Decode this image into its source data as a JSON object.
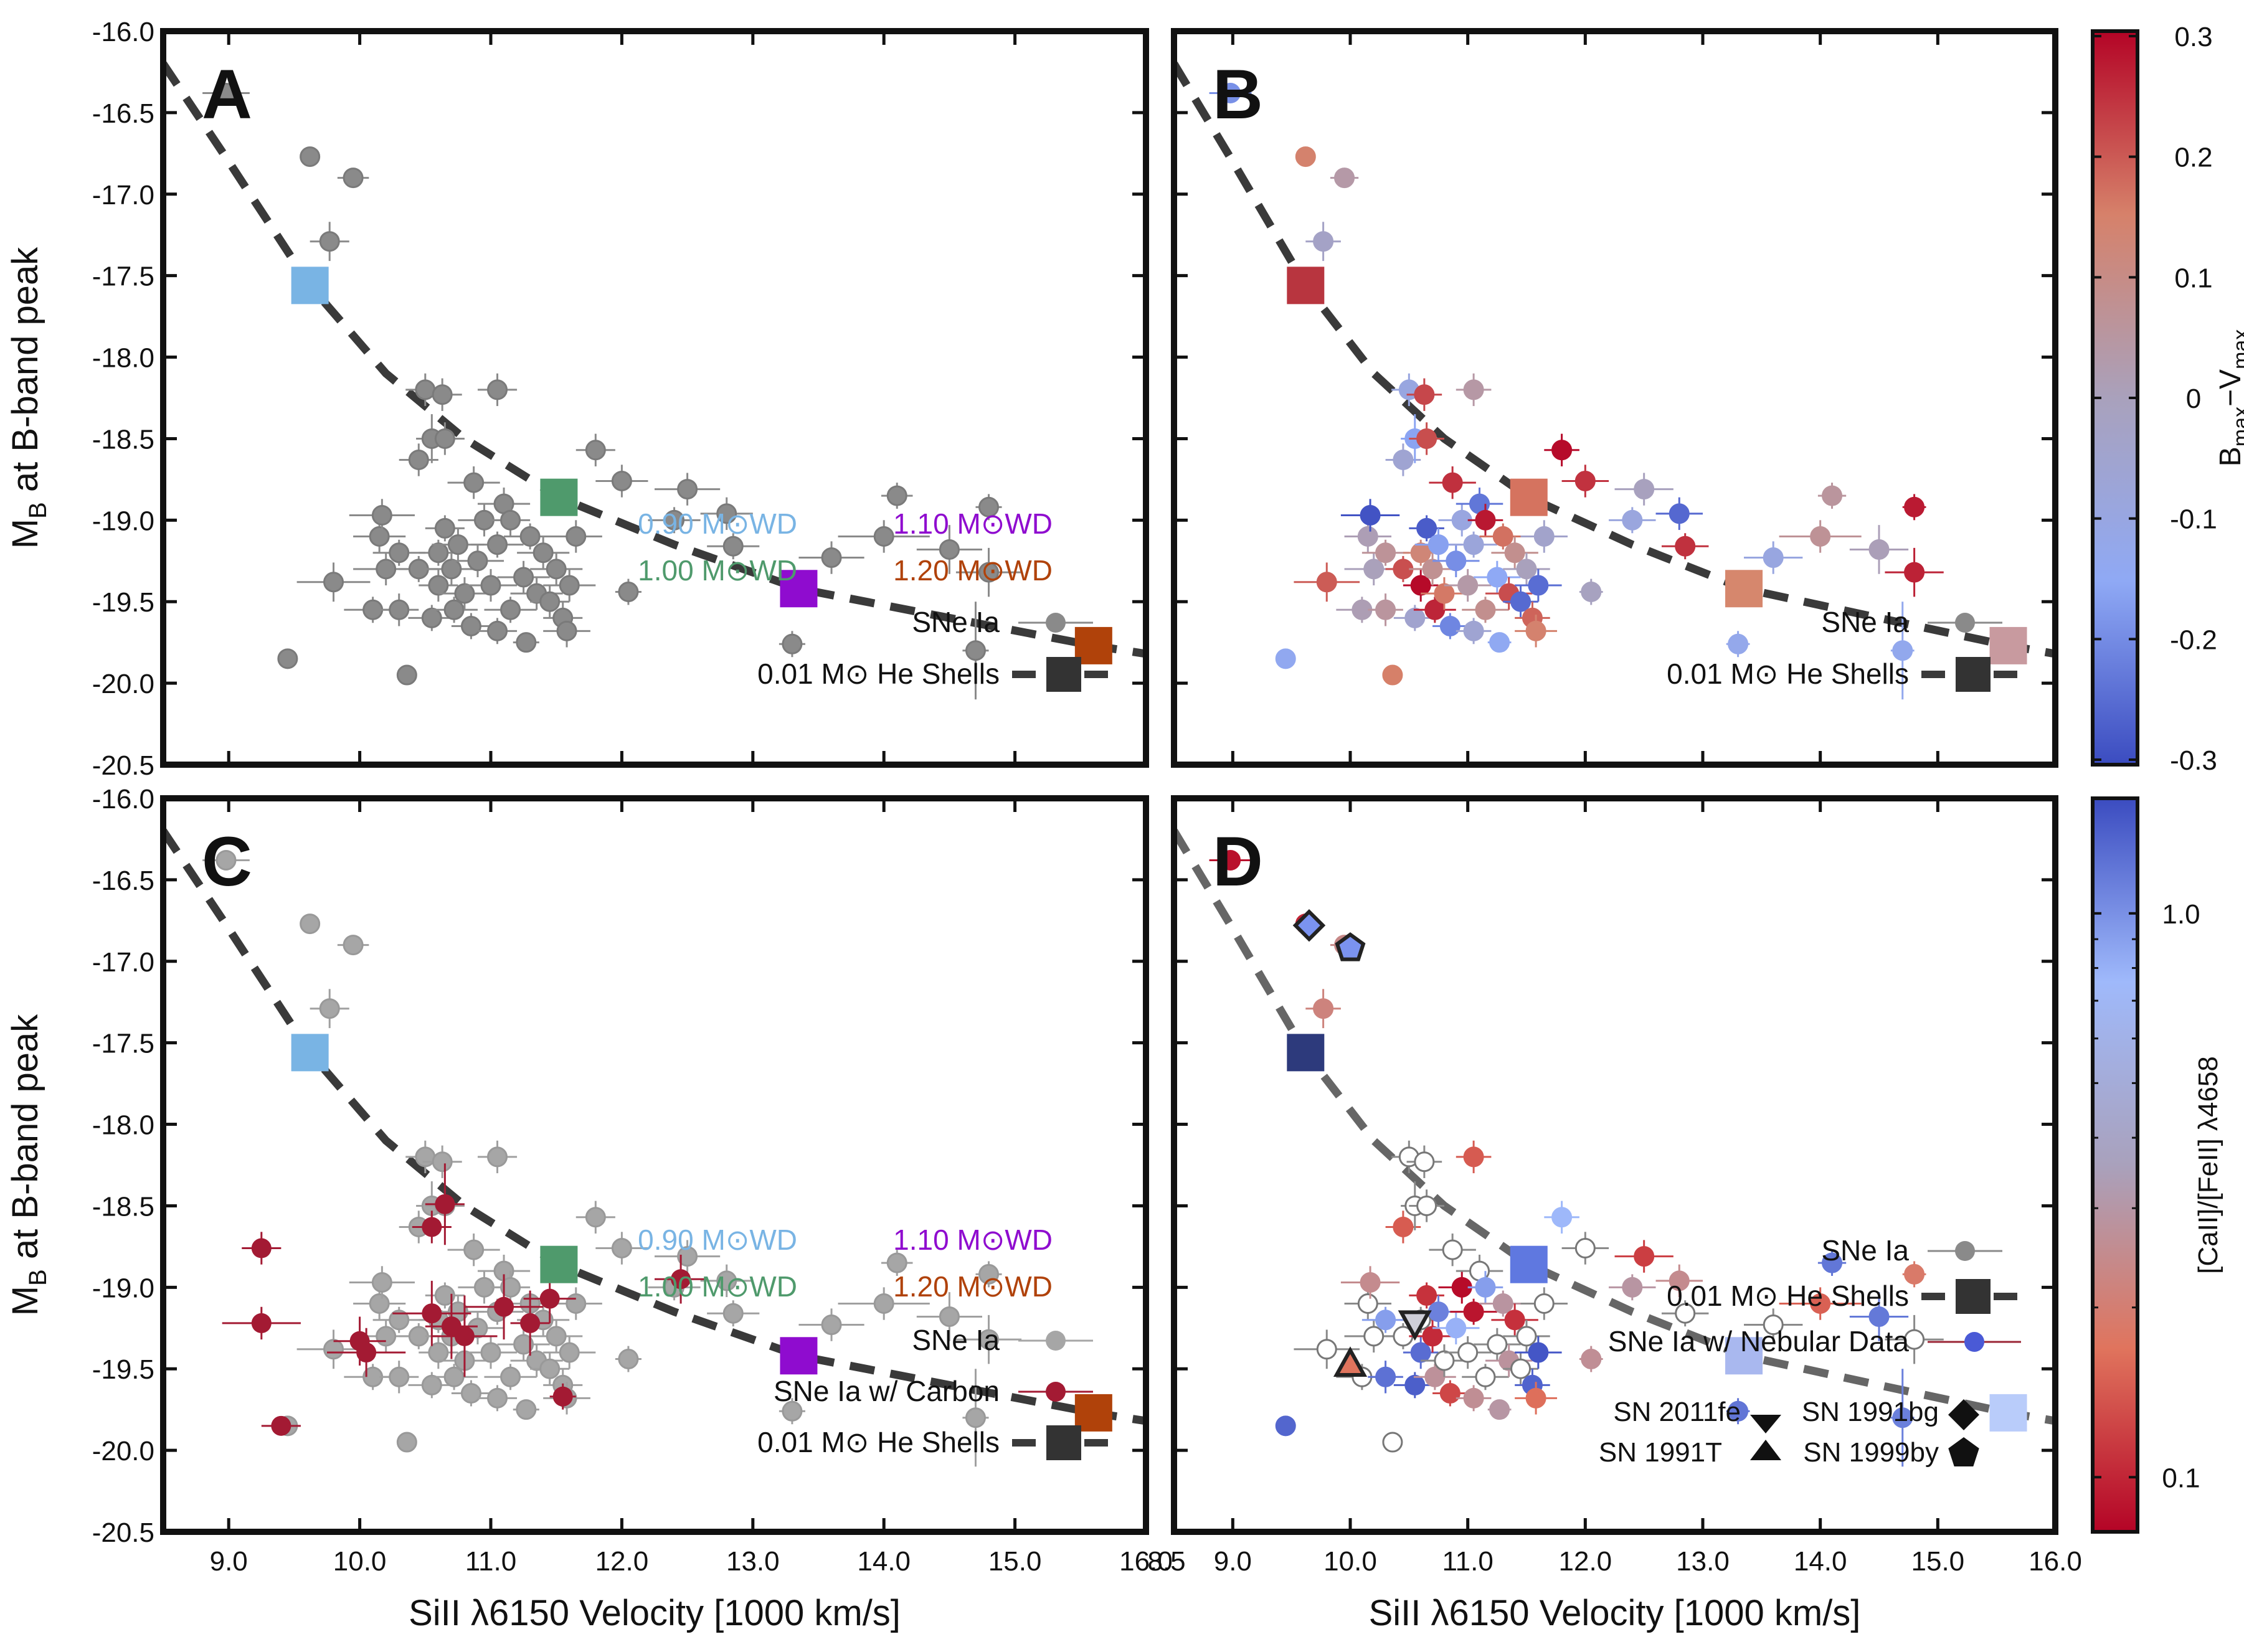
{
  "chart_data": {
    "type": "scatter",
    "y_axis_label": "M",
    "y_axis_label_sub": "B",
    "y_axis_label_rest": " at B-band peak",
    "x_axis_label": "SiII λ6150 Velocity [1000 km/s]",
    "xlim": [
      8.5,
      16.0
    ],
    "ylim": [
      -16.0,
      -20.5
    ],
    "x_ticks": [
      "9.0",
      "10.0",
      "11.0",
      "12.0",
      "13.0",
      "14.0",
      "15.0",
      "16.0"
    ],
    "x_tick_values": [
      9,
      10,
      11,
      12,
      13,
      14,
      15,
      16
    ],
    "x_tick_first_label": "8.5",
    "y_ticks": [
      "-16.0",
      "-16.5",
      "-17.0",
      "-17.5",
      "-18.0",
      "-18.5",
      "-19.0",
      "-19.5",
      "-20.0",
      "-20.5"
    ],
    "y_tick_values": [
      -16.0,
      -16.5,
      -17.0,
      -17.5,
      -18.0,
      -18.5,
      -19.0,
      -19.5,
      -20.0,
      -20.5
    ],
    "panels": [
      {
        "letter": "A",
        "title": "A"
      },
      {
        "letter": "B",
        "title": "B"
      },
      {
        "letter": "C",
        "title": "C"
      },
      {
        "letter": "D",
        "title": "D"
      }
    ],
    "he_shell_models": [
      {
        "label_mass": "0.90 M",
        "label_unit": "WD",
        "wd_mass": 0.9,
        "x": 9.62,
        "y": -17.56,
        "color": "#79b4e4"
      },
      {
        "label_mass": "1.00 M",
        "label_unit": "WD",
        "wd_mass": 1.0,
        "x": 11.52,
        "y": -18.86,
        "color": "#4f9a6c"
      },
      {
        "label_mass": "1.10 M",
        "label_unit": "WD",
        "wd_mass": 1.1,
        "x": 13.35,
        "y": -19.42,
        "color": "#8f0ccf"
      },
      {
        "label_mass": "1.20 M",
        "label_unit": "WD",
        "wd_mass": 1.2,
        "x": 15.6,
        "y": -19.77,
        "color": "#b0420a"
      }
    ],
    "model_curve": [
      [
        8.5,
        -16.2
      ],
      [
        9.0,
        -16.8
      ],
      [
        9.62,
        -17.56
      ],
      [
        10.2,
        -18.1
      ],
      [
        10.8,
        -18.5
      ],
      [
        11.52,
        -18.86
      ],
      [
        12.4,
        -19.15
      ],
      [
        13.35,
        -19.42
      ],
      [
        14.5,
        -19.6
      ],
      [
        15.6,
        -19.77
      ],
      [
        16.0,
        -19.82
      ]
    ],
    "sne_ia": [
      {
        "x": 8.98,
        "y": -16.38,
        "xe": 0.18,
        "ye": 0.05
      },
      {
        "x": 9.62,
        "y": -16.77,
        "xe": 0.05,
        "ye": 0.05
      },
      {
        "x": 9.95,
        "y": -16.9,
        "xe": 0.12,
        "ye": 0.05
      },
      {
        "x": 9.77,
        "y": -17.29,
        "xe": 0.15,
        "ye": 0.12
      },
      {
        "x": 9.45,
        "y": -19.85,
        "xe": 0.05,
        "ye": 0.05
      },
      {
        "x": 9.8,
        "y": -19.38,
        "xe": 0.28,
        "ye": 0.12
      },
      {
        "x": 10.36,
        "y": -19.95,
        "xe": 0.05,
        "ye": 0.05
      },
      {
        "x": 10.2,
        "y": -19.3,
        "xe": 0.25,
        "ye": 0.1
      },
      {
        "x": 10.1,
        "y": -19.55,
        "xe": 0.22,
        "ye": 0.08
      },
      {
        "x": 10.15,
        "y": -19.1,
        "xe": 0.2,
        "ye": 0.1
      },
      {
        "x": 10.17,
        "y": -18.97,
        "xe": 0.25,
        "ye": 0.1
      },
      {
        "x": 10.3,
        "y": -19.55,
        "xe": 0.15,
        "ye": 0.1
      },
      {
        "x": 10.3,
        "y": -19.2,
        "xe": 0.2,
        "ye": 0.08
      },
      {
        "x": 10.45,
        "y": -18.63,
        "xe": 0.15,
        "ye": 0.1
      },
      {
        "x": 10.45,
        "y": -19.3,
        "xe": 0.15,
        "ye": 0.08
      },
      {
        "x": 10.5,
        "y": -18.2,
        "xe": 0.15,
        "ye": 0.1
      },
      {
        "x": 10.55,
        "y": -19.6,
        "xe": 0.18,
        "ye": 0.08
      },
      {
        "x": 10.55,
        "y": -18.5,
        "xe": 0.12,
        "ye": 0.15
      },
      {
        "x": 10.6,
        "y": -19.4,
        "xe": 0.15,
        "ye": 0.1
      },
      {
        "x": 10.6,
        "y": -19.2,
        "xe": 0.15,
        "ye": 0.08
      },
      {
        "x": 10.63,
        "y": -18.23,
        "xe": 0.15,
        "ye": 0.1
      },
      {
        "x": 10.65,
        "y": -18.5,
        "xe": 0.15,
        "ye": 0.1
      },
      {
        "x": 10.65,
        "y": -19.05,
        "xe": 0.15,
        "ye": 0.08
      },
      {
        "x": 10.7,
        "y": -19.3,
        "xe": 0.2,
        "ye": 0.1
      },
      {
        "x": 10.72,
        "y": -19.55,
        "xe": 0.18,
        "ye": 0.08
      },
      {
        "x": 10.75,
        "y": -19.15,
        "xe": 0.2,
        "ye": 0.1
      },
      {
        "x": 10.8,
        "y": -19.45,
        "xe": 0.2,
        "ye": 0.1
      },
      {
        "x": 10.85,
        "y": -19.65,
        "xe": 0.15,
        "ye": 0.08
      },
      {
        "x": 10.87,
        "y": -18.77,
        "xe": 0.2,
        "ye": 0.1
      },
      {
        "x": 10.9,
        "y": -19.25,
        "xe": 0.2,
        "ye": 0.1
      },
      {
        "x": 10.95,
        "y": -19.0,
        "xe": 0.2,
        "ye": 0.1
      },
      {
        "x": 11.0,
        "y": -19.4,
        "xe": 0.2,
        "ye": 0.1
      },
      {
        "x": 11.05,
        "y": -19.15,
        "xe": 0.2,
        "ye": 0.08
      },
      {
        "x": 11.05,
        "y": -19.68,
        "xe": 0.15,
        "ye": 0.08
      },
      {
        "x": 11.05,
        "y": -18.2,
        "xe": 0.15,
        "ye": 0.1
      },
      {
        "x": 11.1,
        "y": -18.9,
        "xe": 0.2,
        "ye": 0.1
      },
      {
        "x": 11.15,
        "y": -19.55,
        "xe": 0.2,
        "ye": 0.08
      },
      {
        "x": 11.15,
        "y": -19.0,
        "xe": 0.15,
        "ye": 0.1
      },
      {
        "x": 11.25,
        "y": -19.35,
        "xe": 0.2,
        "ye": 0.1
      },
      {
        "x": 11.27,
        "y": -19.75,
        "xe": 0.1,
        "ye": 0.05
      },
      {
        "x": 11.3,
        "y": -19.1,
        "xe": 0.2,
        "ye": 0.08
      },
      {
        "x": 11.35,
        "y": -19.45,
        "xe": 0.2,
        "ye": 0.1
      },
      {
        "x": 11.4,
        "y": -19.2,
        "xe": 0.2,
        "ye": 0.1
      },
      {
        "x": 11.45,
        "y": -19.5,
        "xe": 0.15,
        "ye": 0.1
      },
      {
        "x": 11.5,
        "y": -19.3,
        "xe": 0.2,
        "ye": 0.1
      },
      {
        "x": 11.55,
        "y": -19.6,
        "xe": 0.15,
        "ye": 0.1
      },
      {
        "x": 11.58,
        "y": -19.68,
        "xe": 0.18,
        "ye": 0.1
      },
      {
        "x": 11.6,
        "y": -19.4,
        "xe": 0.2,
        "ye": 0.1
      },
      {
        "x": 11.65,
        "y": -19.1,
        "xe": 0.2,
        "ye": 0.1
      },
      {
        "x": 11.8,
        "y": -18.57,
        "xe": 0.15,
        "ye": 0.1
      },
      {
        "x": 12.0,
        "y": -18.76,
        "xe": 0.2,
        "ye": 0.1
      },
      {
        "x": 12.05,
        "y": -19.44,
        "xe": 0.1,
        "ye": 0.08
      },
      {
        "x": 12.4,
        "y": -19.0,
        "xe": 0.2,
        "ye": 0.08
      },
      {
        "x": 12.5,
        "y": -18.81,
        "xe": 0.25,
        "ye": 0.1
      },
      {
        "x": 12.8,
        "y": -18.96,
        "xe": 0.2,
        "ye": 0.1
      },
      {
        "x": 12.85,
        "y": -19.16,
        "xe": 0.2,
        "ye": 0.08
      },
      {
        "x": 13.3,
        "y": -19.76,
        "xe": 0.1,
        "ye": 0.08
      },
      {
        "x": 13.6,
        "y": -19.23,
        "xe": 0.25,
        "ye": 0.1
      },
      {
        "x": 14.0,
        "y": -19.1,
        "xe": 0.35,
        "ye": 0.1
      },
      {
        "x": 14.1,
        "y": -18.85,
        "xe": 0.12,
        "ye": 0.08
      },
      {
        "x": 14.5,
        "y": -19.18,
        "xe": 0.25,
        "ye": 0.15
      },
      {
        "x": 14.7,
        "y": -19.8,
        "xe": 0.1,
        "ye": 0.3
      },
      {
        "x": 14.8,
        "y": -19.32,
        "xe": 0.25,
        "ye": 0.15
      },
      {
        "x": 14.8,
        "y": -18.92,
        "xe": 0.1,
        "ye": 0.08
      }
    ],
    "sne_carbon": [
      {
        "x": 9.4,
        "y": -19.85,
        "xe": 0.15,
        "ye": 0.05
      },
      {
        "x": 9.25,
        "y": -19.22,
        "xe": 0.3,
        "ye": 0.1
      },
      {
        "x": 9.25,
        "y": -18.76,
        "xe": 0.15,
        "ye": 0.1
      },
      {
        "x": 10.0,
        "y": -19.33,
        "xe": 0.2,
        "ye": 0.15
      },
      {
        "x": 10.05,
        "y": -19.4,
        "xe": 0.3,
        "ye": 0.15
      },
      {
        "x": 10.55,
        "y": -18.63,
        "xe": 0.15,
        "ye": 0.1
      },
      {
        "x": 10.65,
        "y": -18.49,
        "xe": 0.15,
        "ye": 0.25
      },
      {
        "x": 10.55,
        "y": -19.16,
        "xe": 0.3,
        "ye": 0.2
      },
      {
        "x": 10.7,
        "y": -19.24,
        "xe": 0.2,
        "ye": 0.2
      },
      {
        "x": 10.8,
        "y": -19.3,
        "xe": 0.25,
        "ye": 0.25
      },
      {
        "x": 11.1,
        "y": -19.12,
        "xe": 0.3,
        "ye": 0.2
      },
      {
        "x": 11.3,
        "y": -19.22,
        "xe": 0.15,
        "ye": 0.2
      },
      {
        "x": 11.45,
        "y": -19.07,
        "xe": 0.2,
        "ye": 0.15
      },
      {
        "x": 11.55,
        "y": -19.67,
        "xe": 0.1,
        "ye": 0.08
      },
      {
        "x": 12.45,
        "y": -18.95,
        "xe": 0.2,
        "ye": 0.15
      }
    ],
    "legend": {
      "sne_ia": "SNe Ia",
      "he_shells_mass": "0.01 M",
      "he_shells_rest": " He Shells",
      "sne_carbon": "SNe Ia w/ Carbon",
      "sne_nebular": "SNe Ia w/ Nebular Data",
      "sn_2011fe": "SN 2011fe",
      "sn_1991T": "SN 1991T",
      "sn_1991bg": "SN 1991bg",
      "sn_1999by": "SN 1999by"
    },
    "special_sne_d": [
      {
        "name": "SN 2011fe",
        "marker": "triangle-down",
        "x": 10.55,
        "y": -19.22
      },
      {
        "name": "SN 1991T",
        "marker": "triangle-up",
        "x": 10.0,
        "y": -19.47
      },
      {
        "name": "SN 1991bg",
        "marker": "diamond",
        "x": 9.65,
        "y": -16.78
      },
      {
        "name": "SN 1999by",
        "marker": "pentagon",
        "x": 10.0,
        "y": -16.92
      }
    ],
    "colorbars": [
      {
        "label_main": "B",
        "label_sub1": "max",
        "label_mid": "−V",
        "label_sub2": "max",
        "ticks": [
          "0.3",
          "0.2",
          "0.1",
          "0",
          "-0.1",
          "-0.2",
          "-0.3"
        ],
        "range": [
          -0.3,
          0.3
        ],
        "stops": [
          "#3b4cc0",
          "#8fa9f5",
          "#a9a1bc",
          "#d6816a",
          "#b40426"
        ]
      },
      {
        "label": "[CaII]/[FeII] λ4658",
        "ticks": [
          "1.0",
          "0.1"
        ],
        "range": [
          0.08,
          1.6
        ],
        "scale": "log",
        "stops": [
          "#b40426",
          "#e0745d",
          "#a9a1bc",
          "#9fb9fb",
          "#3b4cc0"
        ]
      }
    ],
    "colors": {
      "sne_gray": "#8a8a8a",
      "carbon_red": "#a31a33",
      "model_line": "#3a3a3a",
      "axis": "#111111"
    }
  }
}
